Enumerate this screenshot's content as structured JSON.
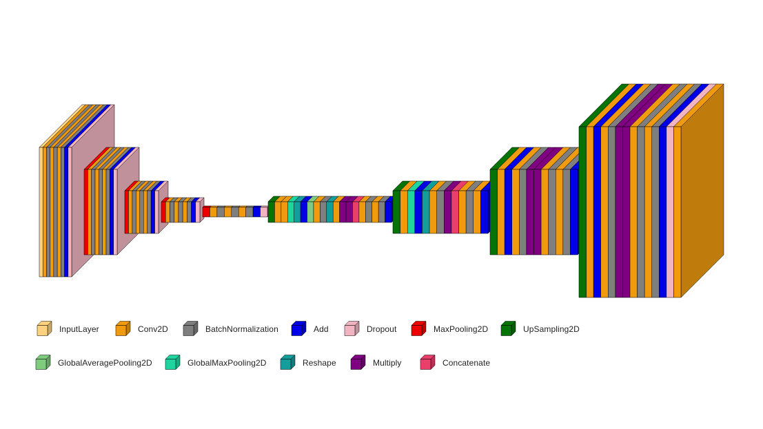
{
  "legend": [
    {
      "label": "InputLayer",
      "color": "#ffd27f"
    },
    {
      "label": "Conv2D",
      "color": "#ef9a0f"
    },
    {
      "label": "BatchNormalization",
      "color": "#7f7f7f"
    },
    {
      "label": "Add",
      "color": "#0000e8"
    },
    {
      "label": "Dropout",
      "color": "#f0b5c0"
    },
    {
      "label": "MaxPooling2D",
      "color": "#ee0000"
    },
    {
      "label": "UpSampling2D",
      "color": "#057305"
    },
    {
      "label": "GlobalAveragePooling2D",
      "color": "#7fcc7f"
    },
    {
      "label": "GlobalMaxPooling2D",
      "color": "#20d4a0"
    },
    {
      "label": "Reshape",
      "color": "#149d9d"
    },
    {
      "label": "Multiply",
      "color": "#7f0080"
    },
    {
      "label": "Concatenate",
      "color": "#ea3f6a"
    }
  ],
  "stages": [
    {
      "layers": [
        "InputLayer",
        "Conv2D",
        "BatchNormalization",
        "Conv2D",
        "BatchNormalization",
        "Conv2D",
        "BatchNormalization",
        "Add",
        "Dropout"
      ]
    },
    {
      "layers": [
        "MaxPooling2D",
        "Conv2D",
        "BatchNormalization",
        "Conv2D",
        "BatchNormalization",
        "Conv2D",
        "BatchNormalization",
        "Add",
        "Dropout"
      ]
    },
    {
      "layers": [
        "MaxPooling2D",
        "Conv2D",
        "BatchNormalization",
        "Conv2D",
        "BatchNormalization",
        "Conv2D",
        "BatchNormalization",
        "Add",
        "Dropout"
      ]
    },
    {
      "layers": [
        "MaxPooling2D",
        "Conv2D",
        "BatchNormalization",
        "Conv2D",
        "BatchNormalization",
        "Conv2D",
        "BatchNormalization",
        "Add",
        "Dropout"
      ]
    },
    {
      "layers": [
        "MaxPooling2D",
        "Conv2D",
        "BatchNormalization",
        "Conv2D",
        "BatchNormalization",
        "Conv2D",
        "BatchNormalization",
        "Add",
        "Dropout"
      ]
    },
    {
      "layers": [
        "UpSampling2D",
        "Conv2D",
        "Conv2D",
        "GlobalMaxPooling2D",
        "Reshape",
        "Add",
        "GlobalAveragePooling2D",
        "Conv2D",
        "BatchNormalization",
        "Reshape",
        "Conv2D",
        "Multiply",
        "Multiply",
        "Concatenate",
        "Conv2D",
        "BatchNormalization",
        "Conv2D",
        "BatchNormalization",
        "Add"
      ]
    },
    {
      "layers": [
        "UpSampling2D",
        "Conv2D",
        "GlobalMaxPooling2D",
        "Add",
        "Reshape",
        "Conv2D",
        "BatchNormalization",
        "Multiply",
        "Concatenate",
        "Conv2D",
        "BatchNormalization",
        "Conv2D",
        "Add"
      ]
    },
    {
      "layers": [
        "UpSampling2D",
        "Conv2D",
        "Add",
        "Conv2D",
        "BatchNormalization",
        "Multiply",
        "Multiply",
        "Conv2D",
        "BatchNormalization",
        "Conv2D",
        "BatchNormalization",
        "Add"
      ]
    },
    {
      "layers": [
        "UpSampling2D",
        "Conv2D",
        "Add",
        "Conv2D",
        "BatchNormalization",
        "Multiply",
        "Multiply",
        "Conv2D",
        "BatchNormalization",
        "Conv2D",
        "BatchNormalization",
        "Add",
        "Dropout",
        "Conv2D"
      ]
    }
  ]
}
